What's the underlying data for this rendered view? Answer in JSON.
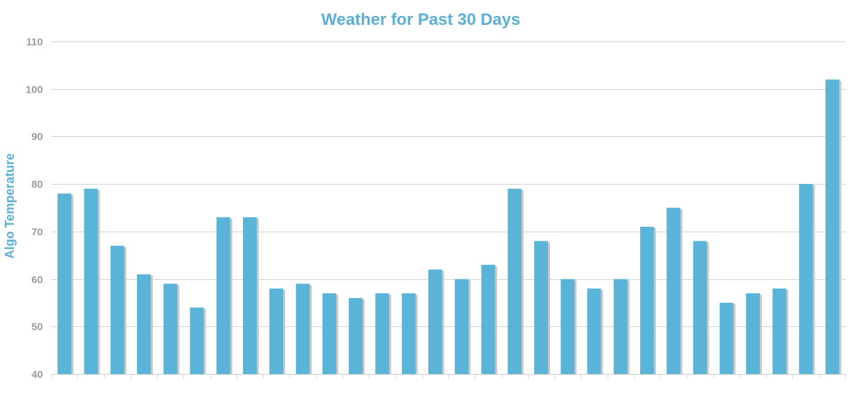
{
  "chart_data": {
    "type": "bar",
    "title": "Weather for Past 30 Days",
    "xlabel": "",
    "ylabel": "Algo Temperature",
    "ylim": [
      40,
      110
    ],
    "yticks": [
      40,
      50,
      60,
      70,
      80,
      90,
      100,
      110
    ],
    "grid": true,
    "legend": "none",
    "categories": [
      "",
      "",
      "",
      "",
      "",
      "",
      "",
      "",
      "",
      "",
      "",
      "",
      "",
      "",
      "",
      "",
      "",
      "",
      "",
      "",
      "",
      "",
      "",
      "",
      "",
      "",
      "",
      "",
      "",
      ""
    ],
    "values": [
      78,
      79,
      67,
      61,
      59,
      54,
      73,
      73,
      58,
      59,
      57,
      56,
      57,
      57,
      62,
      60,
      63,
      79,
      68,
      60,
      58,
      60,
      71,
      75,
      68,
      55,
      57,
      58,
      80,
      102
    ],
    "colors": {
      "bar": "#5ab4d8",
      "bar_shadow": "#c8c8c8",
      "title": "#5aafd4",
      "ylabel": "#5aafd4"
    }
  }
}
